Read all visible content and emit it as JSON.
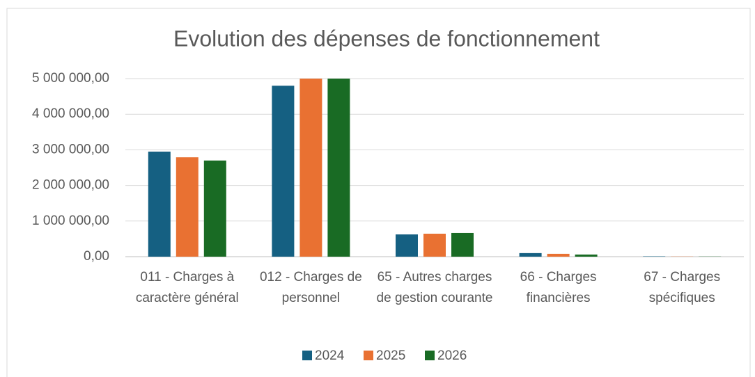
{
  "chart_data": {
    "type": "bar",
    "title": "Evolution des dépenses de fonctionnement",
    "categories": [
      "011 - Charges à caractère général",
      "012 - Charges de personnel",
      "65 - Autres charges de gestion courante",
      "66 - Charges financières",
      "67 - Charges spécifiques"
    ],
    "series": [
      {
        "name": "2024",
        "color": "#156082",
        "values": [
          2950000,
          4800000,
          625000,
          100000,
          10000
        ]
      },
      {
        "name": "2025",
        "color": "#e97132",
        "values": [
          2790000,
          5000000,
          645000,
          80000,
          5000
        ]
      },
      {
        "name": "2026",
        "color": "#196b24",
        "values": [
          2700000,
          5000000,
          665000,
          60000,
          5000
        ]
      }
    ],
    "ylim": [
      0,
      5000000
    ],
    "yticks": [
      {
        "value": 0,
        "label": "0,00"
      },
      {
        "value": 1000000,
        "label": "1 000 000,00"
      },
      {
        "value": 2000000,
        "label": "2 000 000,00"
      },
      {
        "value": 3000000,
        "label": "3 000 000,00"
      },
      {
        "value": 4000000,
        "label": "4 000 000,00"
      },
      {
        "value": 5000000,
        "label": "5 000 000,00"
      }
    ],
    "grid": true,
    "legend": "bottom"
  }
}
